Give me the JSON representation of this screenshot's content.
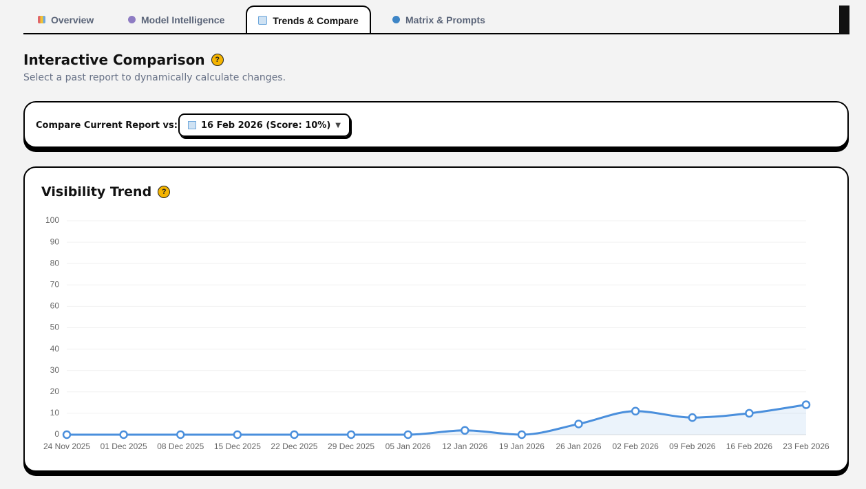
{
  "tabs": [
    "Overview",
    "Model Intelligence",
    "Trends & Compare",
    "Matrix & Prompts"
  ],
  "help": "?",
  "heading": {
    "title": "Interactive Comparison",
    "subtitle": "Select a past report to dynamically calculate changes."
  },
  "compare": {
    "label": "Compare Current Report vs:",
    "selected": "16 Feb 2026 (Score: 10%)"
  },
  "chart_data": {
    "type": "line",
    "title": "Visibility Trend",
    "categories": [
      "24 Nov 2025",
      "01 Dec 2025",
      "08 Dec 2025",
      "15 Dec 2025",
      "22 Dec 2025",
      "29 Dec 2025",
      "05 Jan 2026",
      "12 Jan 2026",
      "19 Jan 2026",
      "26 Jan 2026",
      "02 Feb 2026",
      "09 Feb 2026",
      "16 Feb 2026",
      "23 Feb 2026"
    ],
    "values": [
      0,
      0,
      0,
      0,
      0,
      0,
      0,
      2,
      0,
      5,
      11,
      8,
      10,
      14
    ],
    "color": "#4a8fdc",
    "area": true,
    "ylim": [
      0,
      100
    ],
    "yticks": [
      0,
      10,
      20,
      30,
      40,
      50,
      60,
      70,
      80,
      90,
      100
    ],
    "grid": true
  }
}
